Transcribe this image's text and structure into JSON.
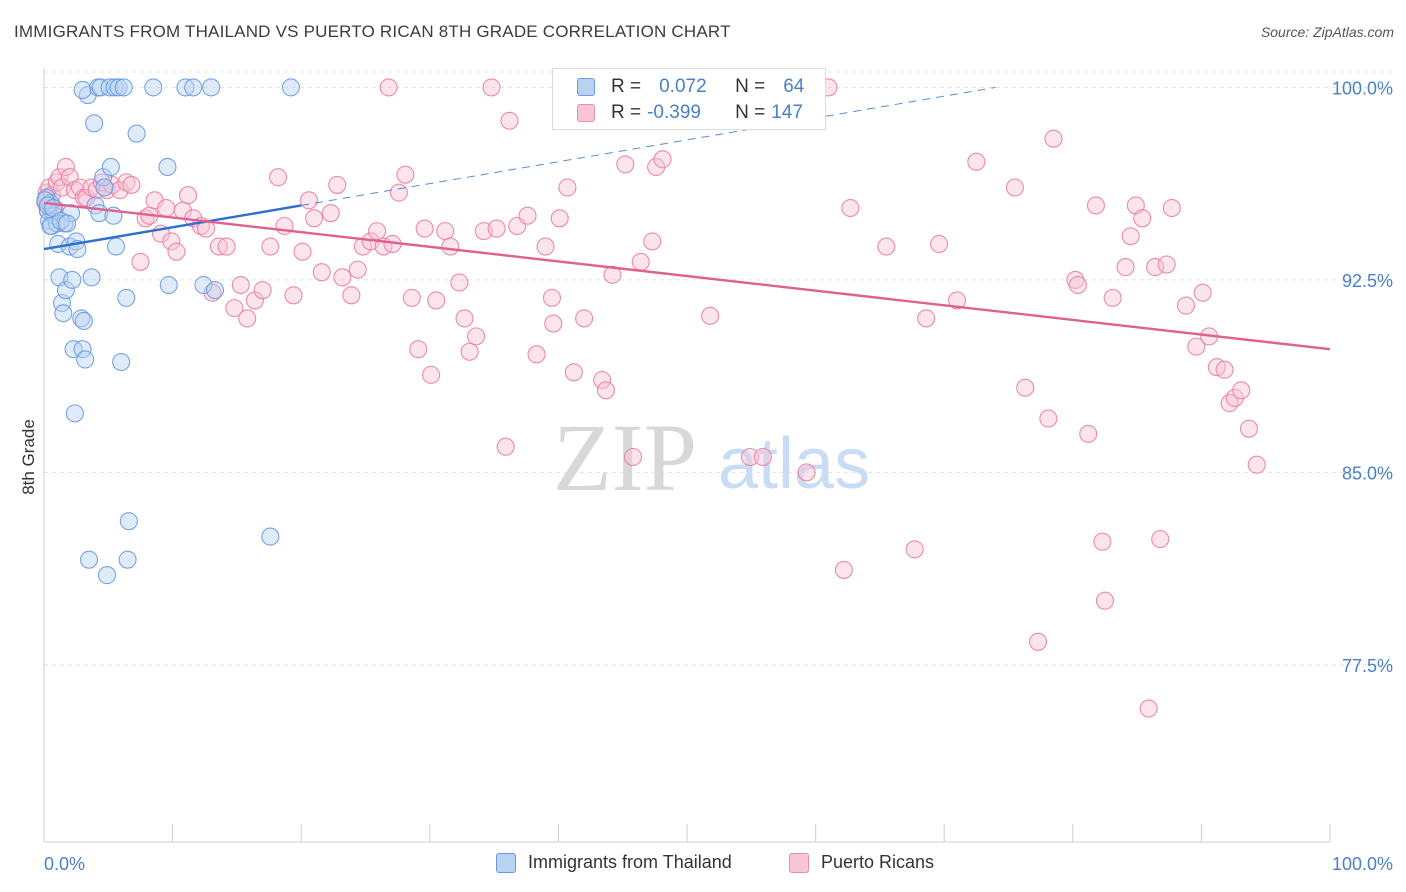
{
  "title": "IMMIGRANTS FROM THAILAND VS PUERTO RICAN 8TH GRADE CORRELATION CHART",
  "source": "Source: ZipAtlas.com",
  "watermark": {
    "zip": "ZIP",
    "atlas": "atlas"
  },
  "legend": {
    "r_label": "R =",
    "n_label": "N =",
    "rows": [
      {
        "r": "0.072",
        "n": "64",
        "fill": "#b8d2f2",
        "stroke": "#6a9ae0"
      },
      {
        "r": "-0.399",
        "n": "147",
        "fill": "#f8c4d6",
        "stroke": "#e890b0"
      }
    ]
  },
  "bottom_legend": {
    "series1": "Immigrants from Thailand",
    "series2": "Puerto Ricans"
  },
  "colors": {
    "blue": "#6a9ae0",
    "blue_fill": "#b8d2f2",
    "pink": "#e8809f",
    "pink_fill": "#f8c4d6",
    "blue_line": "#2e6fcf",
    "pink_line": "#e0608e",
    "axis_text": "#4a80c8"
  },
  "chart_data": {
    "type": "scatter",
    "xlabel": "",
    "ylabel": "8th Grade",
    "xlim": [
      0,
      100
    ],
    "ylim": [
      70.6,
      100.6
    ],
    "x_tick_labels": [
      "0.0%",
      "100.0%"
    ],
    "y_ticks": [
      100.0,
      92.5,
      85.0,
      77.5
    ],
    "y_tick_labels": [
      "100.0%",
      "92.5%",
      "85.0%",
      "77.5%"
    ],
    "grid": true,
    "series": [
      {
        "name": "Immigrants from Thailand",
        "color": "#6a9ae0",
        "points": [
          [
            0.2,
            95.7
          ],
          [
            0.3,
            95.2
          ],
          [
            0.4,
            94.8
          ],
          [
            0.5,
            95.5
          ],
          [
            0.6,
            94.6
          ],
          [
            0.8,
            95.0
          ],
          [
            1.0,
            94.7
          ],
          [
            1.1,
            93.9
          ],
          [
            1.2,
            92.6
          ],
          [
            1.4,
            91.6
          ],
          [
            1.5,
            91.2
          ],
          [
            1.6,
            94.7
          ],
          [
            1.7,
            92.1
          ],
          [
            2.0,
            93.8
          ],
          [
            2.1,
            95.1
          ],
          [
            2.2,
            92.5
          ],
          [
            2.3,
            89.8
          ],
          [
            2.4,
            87.3
          ],
          [
            2.5,
            94.0
          ],
          [
            2.6,
            93.7
          ],
          [
            2.9,
            91.0
          ],
          [
            3.0,
            89.8
          ],
          [
            3.1,
            90.9
          ],
          [
            3.2,
            89.4
          ],
          [
            3.4,
            99.7
          ],
          [
            3.5,
            81.6
          ],
          [
            3.7,
            92.6
          ],
          [
            3.9,
            98.6
          ],
          [
            4.0,
            95.4
          ],
          [
            4.2,
            100.0
          ],
          [
            4.3,
            95.1
          ],
          [
            4.4,
            100.0
          ],
          [
            4.6,
            96.5
          ],
          [
            4.7,
            96.1
          ],
          [
            4.9,
            81.0
          ],
          [
            5.1,
            100.0
          ],
          [
            5.2,
            96.9
          ],
          [
            5.4,
            95.0
          ],
          [
            5.5,
            100.0
          ],
          [
            5.6,
            93.8
          ],
          [
            5.8,
            100.0
          ],
          [
            6.0,
            89.3
          ],
          [
            6.2,
            100.0
          ],
          [
            6.4,
            91.8
          ],
          [
            6.5,
            81.6
          ],
          [
            6.6,
            83.1
          ],
          [
            7.2,
            98.2
          ],
          [
            8.5,
            100.0
          ],
          [
            9.6,
            96.9
          ],
          [
            9.7,
            92.3
          ],
          [
            11.0,
            100.0
          ],
          [
            11.6,
            100.0
          ],
          [
            12.4,
            92.3
          ],
          [
            13.0,
            100.0
          ],
          [
            13.3,
            92.1
          ],
          [
            17.6,
            82.5
          ],
          [
            19.2,
            100.0
          ],
          [
            0.1,
            95.6
          ],
          [
            0.3,
            95.4
          ],
          [
            0.5,
            94.6
          ],
          [
            0.7,
            95.3
          ],
          [
            1.3,
            94.8
          ],
          [
            1.8,
            94.7
          ],
          [
            3.0,
            99.9
          ]
        ]
      },
      {
        "name": "Puerto Ricans",
        "color": "#e8809f",
        "points": [
          [
            0.1,
            95.5
          ],
          [
            0.2,
            95.9
          ],
          [
            0.3,
            95.2
          ],
          [
            0.4,
            96.1
          ],
          [
            0.5,
            95.4
          ],
          [
            0.6,
            95.8
          ],
          [
            0.8,
            95.3
          ],
          [
            1.0,
            96.3
          ],
          [
            1.2,
            96.5
          ],
          [
            1.4,
            96.1
          ],
          [
            1.7,
            96.9
          ],
          [
            2.0,
            96.5
          ],
          [
            2.4,
            96.0
          ],
          [
            2.8,
            96.1
          ],
          [
            3.1,
            95.7
          ],
          [
            3.3,
            95.7
          ],
          [
            3.7,
            96.1
          ],
          [
            4.1,
            96.0
          ],
          [
            4.5,
            96.3
          ],
          [
            4.9,
            96.0
          ],
          [
            5.3,
            96.2
          ],
          [
            5.9,
            96.0
          ],
          [
            6.4,
            96.3
          ],
          [
            6.8,
            96.2
          ],
          [
            7.5,
            93.2
          ],
          [
            7.9,
            94.9
          ],
          [
            8.2,
            95.0
          ],
          [
            8.6,
            95.6
          ],
          [
            9.1,
            94.3
          ],
          [
            9.5,
            95.3
          ],
          [
            9.9,
            94.0
          ],
          [
            10.3,
            93.6
          ],
          [
            10.8,
            95.2
          ],
          [
            11.2,
            95.8
          ],
          [
            11.6,
            94.9
          ],
          [
            12.2,
            94.6
          ],
          [
            12.6,
            94.5
          ],
          [
            13.1,
            92.0
          ],
          [
            13.6,
            93.8
          ],
          [
            14.2,
            93.8
          ],
          [
            14.8,
            91.4
          ],
          [
            15.3,
            92.3
          ],
          [
            15.8,
            91.0
          ],
          [
            16.4,
            91.7
          ],
          [
            17.0,
            92.1
          ],
          [
            17.6,
            93.8
          ],
          [
            18.2,
            96.5
          ],
          [
            18.7,
            94.6
          ],
          [
            19.4,
            91.9
          ],
          [
            20.1,
            93.6
          ],
          [
            20.6,
            95.6
          ],
          [
            21.0,
            94.9
          ],
          [
            21.6,
            92.8
          ],
          [
            22.3,
            95.1
          ],
          [
            22.8,
            96.2
          ],
          [
            23.2,
            92.6
          ],
          [
            23.9,
            91.9
          ],
          [
            24.4,
            92.9
          ],
          [
            24.8,
            93.8
          ],
          [
            25.4,
            94.0
          ],
          [
            25.9,
            94.4
          ],
          [
            26.4,
            93.8
          ],
          [
            27.1,
            93.9
          ],
          [
            27.6,
            95.9
          ],
          [
            28.1,
            96.6
          ],
          [
            28.6,
            91.8
          ],
          [
            29.1,
            89.8
          ],
          [
            29.6,
            94.5
          ],
          [
            30.1,
            88.8
          ],
          [
            30.5,
            91.7
          ],
          [
            31.2,
            94.4
          ],
          [
            31.6,
            93.8
          ],
          [
            32.3,
            92.4
          ],
          [
            32.7,
            91.0
          ],
          [
            33.1,
            89.7
          ],
          [
            33.6,
            90.3
          ],
          [
            34.2,
            94.4
          ],
          [
            34.8,
            100.0
          ],
          [
            35.2,
            94.5
          ],
          [
            35.9,
            86.0
          ],
          [
            36.8,
            94.6
          ],
          [
            37.6,
            95.0
          ],
          [
            38.3,
            89.6
          ],
          [
            39.0,
            93.8
          ],
          [
            39.6,
            90.8
          ],
          [
            40.1,
            94.9
          ],
          [
            40.7,
            96.1
          ],
          [
            41.2,
            88.9
          ],
          [
            42.0,
            91.0
          ],
          [
            43.4,
            88.6
          ],
          [
            43.7,
            88.2
          ],
          [
            44.2,
            92.7
          ],
          [
            45.2,
            97.0
          ],
          [
            45.8,
            85.6
          ],
          [
            46.4,
            93.2
          ],
          [
            47.3,
            94.0
          ],
          [
            47.6,
            96.9
          ],
          [
            48.1,
            97.2
          ],
          [
            48.6,
            100.0
          ],
          [
            51.2,
            100.0
          ],
          [
            51.8,
            91.1
          ],
          [
            53.1,
            100.0
          ],
          [
            54.9,
            85.6
          ],
          [
            55.9,
            85.6
          ],
          [
            57.1,
            100.0
          ],
          [
            59.3,
            85.0
          ],
          [
            61.0,
            100.0
          ],
          [
            62.2,
            81.2
          ],
          [
            62.7,
            95.3
          ],
          [
            65.5,
            93.8
          ],
          [
            67.7,
            82.0
          ],
          [
            68.6,
            91.0
          ],
          [
            69.6,
            93.9
          ],
          [
            71.0,
            91.7
          ],
          [
            72.5,
            97.1
          ],
          [
            75.5,
            96.1
          ],
          [
            76.3,
            88.3
          ],
          [
            77.3,
            78.4
          ],
          [
            78.1,
            87.1
          ],
          [
            78.5,
            98.0
          ],
          [
            80.2,
            92.5
          ],
          [
            80.4,
            92.3
          ],
          [
            81.2,
            86.5
          ],
          [
            81.8,
            95.4
          ],
          [
            82.3,
            82.3
          ],
          [
            82.5,
            80.0
          ],
          [
            83.1,
            91.8
          ],
          [
            84.1,
            93.0
          ],
          [
            84.5,
            94.2
          ],
          [
            84.9,
            95.4
          ],
          [
            85.4,
            94.9
          ],
          [
            85.9,
            75.8
          ],
          [
            86.4,
            93.0
          ],
          [
            86.8,
            82.4
          ],
          [
            87.3,
            93.1
          ],
          [
            87.7,
            95.3
          ],
          [
            88.8,
            91.5
          ],
          [
            89.6,
            89.9
          ],
          [
            90.1,
            92.0
          ],
          [
            90.6,
            90.3
          ],
          [
            91.2,
            89.1
          ],
          [
            91.8,
            89.0
          ],
          [
            92.2,
            87.7
          ],
          [
            92.6,
            87.9
          ],
          [
            93.1,
            88.2
          ],
          [
            93.7,
            86.7
          ],
          [
            94.3,
            85.3
          ],
          [
            39.5,
            91.8
          ],
          [
            26.8,
            100.0
          ],
          [
            36.2,
            98.7
          ]
        ]
      }
    ],
    "trendlines": [
      {
        "series": "Immigrants from Thailand",
        "x": [
          0,
          20
        ],
        "y": [
          93.7,
          95.4
        ],
        "dashed_extension_x": [
          20,
          74
        ],
        "dashed_extension_y": [
          95.4,
          100.0
        ]
      },
      {
        "series": "Puerto Ricans",
        "x": [
          0,
          100
        ],
        "y": [
          95.5,
          89.8
        ]
      }
    ]
  }
}
